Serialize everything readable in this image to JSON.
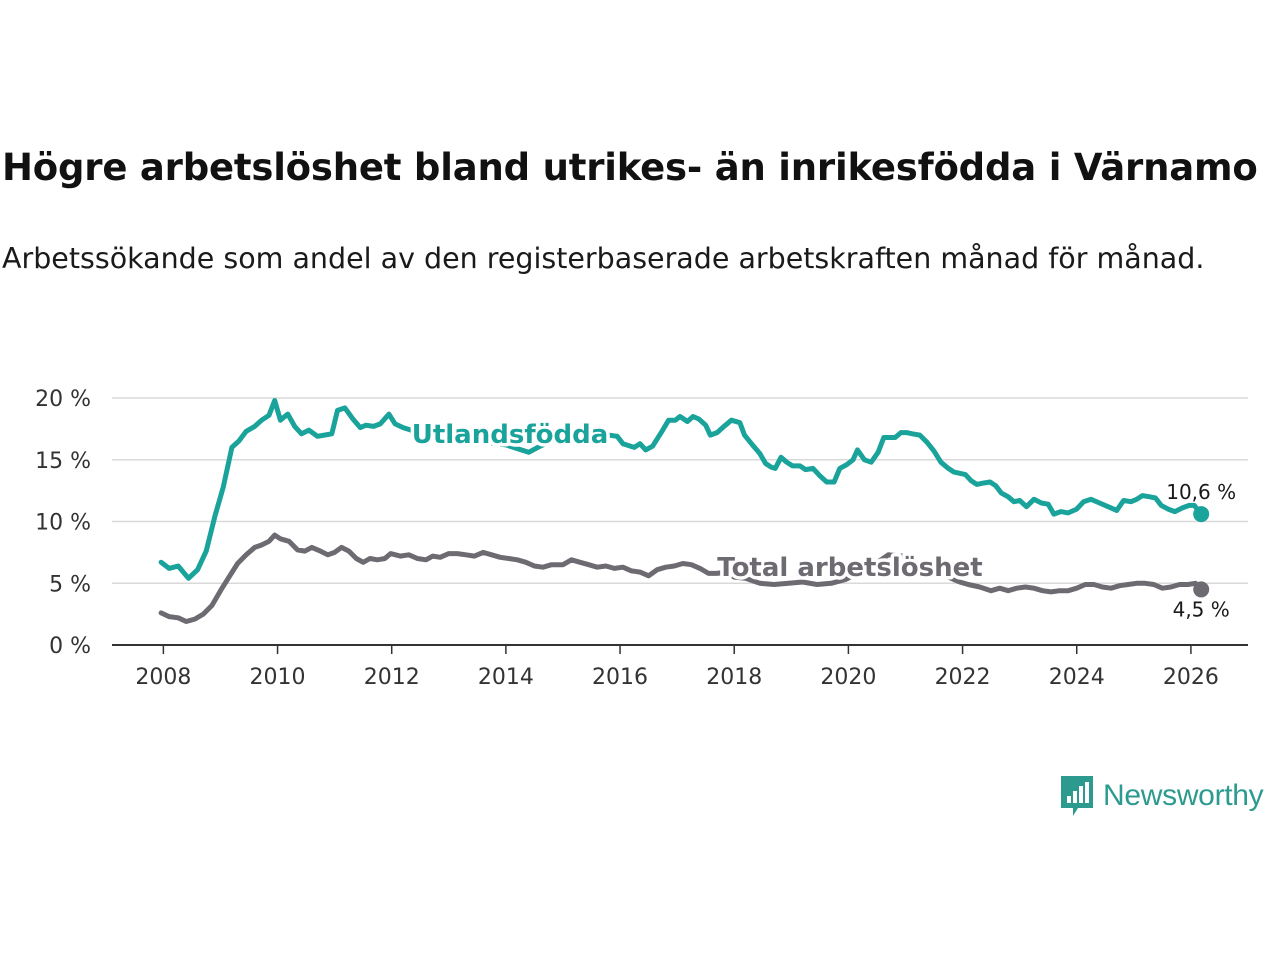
{
  "title": "Högre arbetslöshet bland utrikes- än inrikesfödda i Värnamo",
  "subtitle": "Arbetssökande som andel av den registerbaserade arbetskraften månad för månad.",
  "brand": "Newsworthy",
  "colors": {
    "utlandsfodda": "#1aa39a",
    "total": "#6e6a72",
    "grid": "#d9d9d9",
    "brand": "#2c9a8f"
  },
  "chart_data": {
    "type": "line",
    "title": "Högre arbetslöshet bland utrikes- än inrikesfödda i Värnamo",
    "xlabel": "",
    "ylabel": "",
    "xlim": [
      2007.1,
      2027.0
    ],
    "ylim": [
      0,
      20
    ],
    "yticks": [
      0,
      5,
      10,
      15,
      20
    ],
    "ytick_labels": [
      "0 %",
      "5 %",
      "10 %",
      "15 %",
      "20 %"
    ],
    "xticks": [
      2008,
      2010,
      2012,
      2014,
      2016,
      2018,
      2020,
      2022,
      2024,
      2026
    ],
    "xtick_labels": [
      "2008",
      "2010",
      "2012",
      "2014",
      "2016",
      "2018",
      "2020",
      "2022",
      "2024",
      "2026"
    ],
    "grid": true,
    "series": [
      {
        "name": "Utlandsfödda",
        "end_label": "10,6 %",
        "points": [
          [
            2007.96,
            6.7
          ],
          [
            2008.1,
            6.2
          ],
          [
            2008.26,
            6.4
          ],
          [
            2008.44,
            5.4
          ],
          [
            2008.6,
            6.1
          ],
          [
            2008.75,
            7.6
          ],
          [
            2008.9,
            10.4
          ],
          [
            2009.05,
            12.8
          ],
          [
            2009.2,
            16.0
          ],
          [
            2009.32,
            16.5
          ],
          [
            2009.45,
            17.3
          ],
          [
            2009.6,
            17.7
          ],
          [
            2009.72,
            18.2
          ],
          [
            2009.85,
            18.6
          ],
          [
            2009.95,
            19.8
          ],
          [
            2010.05,
            18.2
          ],
          [
            2010.18,
            18.7
          ],
          [
            2010.3,
            17.7
          ],
          [
            2010.42,
            17.1
          ],
          [
            2010.55,
            17.4
          ],
          [
            2010.7,
            16.9
          ],
          [
            2010.82,
            17.0
          ],
          [
            2010.95,
            17.1
          ],
          [
            2011.05,
            19.0
          ],
          [
            2011.18,
            19.2
          ],
          [
            2011.32,
            18.3
          ],
          [
            2011.45,
            17.6
          ],
          [
            2011.55,
            17.8
          ],
          [
            2011.68,
            17.7
          ],
          [
            2011.8,
            17.9
          ],
          [
            2011.95,
            18.7
          ],
          [
            2012.06,
            17.9
          ],
          [
            2012.2,
            17.6
          ],
          [
            2012.4,
            17.3
          ],
          [
            2012.8,
            17.1
          ],
          [
            2013.4,
            16.6
          ],
          [
            2014.0,
            16.2
          ],
          [
            2014.4,
            15.6
          ],
          [
            2014.6,
            16.1
          ],
          [
            2015.0,
            16.9
          ],
          [
            2015.5,
            17.2
          ],
          [
            2015.95,
            16.9
          ],
          [
            2016.05,
            16.3
          ],
          [
            2016.25,
            16.0
          ],
          [
            2016.35,
            16.3
          ],
          [
            2016.45,
            15.8
          ],
          [
            2016.57,
            16.1
          ],
          [
            2016.72,
            17.2
          ],
          [
            2016.85,
            18.2
          ],
          [
            2016.97,
            18.2
          ],
          [
            2017.05,
            18.5
          ],
          [
            2017.18,
            18.1
          ],
          [
            2017.28,
            18.5
          ],
          [
            2017.38,
            18.3
          ],
          [
            2017.5,
            17.8
          ],
          [
            2017.58,
            17.0
          ],
          [
            2017.7,
            17.2
          ],
          [
            2017.82,
            17.7
          ],
          [
            2017.95,
            18.2
          ],
          [
            2018.1,
            18.0
          ],
          [
            2018.18,
            17.0
          ],
          [
            2018.32,
            16.2
          ],
          [
            2018.45,
            15.5
          ],
          [
            2018.55,
            14.7
          ],
          [
            2018.65,
            14.4
          ],
          [
            2018.72,
            14.3
          ],
          [
            2018.82,
            15.2
          ],
          [
            2018.92,
            14.8
          ],
          [
            2019.02,
            14.5
          ],
          [
            2019.15,
            14.5
          ],
          [
            2019.25,
            14.2
          ],
          [
            2019.38,
            14.3
          ],
          [
            2019.5,
            13.7
          ],
          [
            2019.62,
            13.2
          ],
          [
            2019.75,
            13.2
          ],
          [
            2019.85,
            14.3
          ],
          [
            2019.97,
            14.6
          ],
          [
            2020.08,
            15.0
          ],
          [
            2020.16,
            15.8
          ],
          [
            2020.28,
            15.0
          ],
          [
            2020.4,
            14.8
          ],
          [
            2020.52,
            15.6
          ],
          [
            2020.62,
            16.8
          ],
          [
            2020.72,
            16.8
          ],
          [
            2020.82,
            16.8
          ],
          [
            2020.92,
            17.2
          ],
          [
            2021.02,
            17.2
          ],
          [
            2021.12,
            17.1
          ],
          [
            2021.25,
            17.0
          ],
          [
            2021.38,
            16.4
          ],
          [
            2021.5,
            15.7
          ],
          [
            2021.62,
            14.8
          ],
          [
            2021.75,
            14.3
          ],
          [
            2021.85,
            14.0
          ],
          [
            2021.95,
            13.9
          ],
          [
            2022.05,
            13.8
          ],
          [
            2022.15,
            13.3
          ],
          [
            2022.25,
            13.0
          ],
          [
            2022.35,
            13.1
          ],
          [
            2022.48,
            13.2
          ],
          [
            2022.58,
            12.9
          ],
          [
            2022.68,
            12.3
          ],
          [
            2022.8,
            12.0
          ],
          [
            2022.9,
            11.6
          ],
          [
            2023.0,
            11.7
          ],
          [
            2023.12,
            11.2
          ],
          [
            2023.25,
            11.8
          ],
          [
            2023.38,
            11.5
          ],
          [
            2023.5,
            11.4
          ],
          [
            2023.6,
            10.6
          ],
          [
            2023.72,
            10.8
          ],
          [
            2023.85,
            10.7
          ],
          [
            2024.0,
            11.0
          ],
          [
            2024.12,
            11.6
          ],
          [
            2024.25,
            11.8
          ],
          [
            2024.4,
            11.5
          ],
          [
            2024.55,
            11.2
          ],
          [
            2024.7,
            10.9
          ],
          [
            2024.82,
            11.7
          ],
          [
            2024.95,
            11.6
          ],
          [
            2025.05,
            11.8
          ],
          [
            2025.15,
            12.1
          ],
          [
            2025.28,
            12.0
          ],
          [
            2025.38,
            11.9
          ],
          [
            2025.48,
            11.3
          ],
          [
            2025.6,
            11.0
          ],
          [
            2025.72,
            10.8
          ],
          [
            2025.85,
            11.1
          ],
          [
            2025.97,
            11.3
          ],
          [
            2026.06,
            11.3
          ],
          [
            2026.18,
            10.6
          ]
        ]
      },
      {
        "name": "Total arbetslöshet",
        "end_label": "4,5 %",
        "points": [
          [
            2007.96,
            2.6
          ],
          [
            2008.1,
            2.3
          ],
          [
            2008.26,
            2.2
          ],
          [
            2008.4,
            1.9
          ],
          [
            2008.55,
            2.1
          ],
          [
            2008.7,
            2.5
          ],
          [
            2008.85,
            3.2
          ],
          [
            2009.0,
            4.4
          ],
          [
            2009.15,
            5.5
          ],
          [
            2009.3,
            6.6
          ],
          [
            2009.45,
            7.3
          ],
          [
            2009.6,
            7.9
          ],
          [
            2009.72,
            8.1
          ],
          [
            2009.85,
            8.4
          ],
          [
            2009.95,
            8.9
          ],
          [
            2010.05,
            8.6
          ],
          [
            2010.2,
            8.4
          ],
          [
            2010.35,
            7.7
          ],
          [
            2010.48,
            7.6
          ],
          [
            2010.6,
            7.9
          ],
          [
            2010.75,
            7.6
          ],
          [
            2010.88,
            7.3
          ],
          [
            2011.0,
            7.5
          ],
          [
            2011.12,
            7.9
          ],
          [
            2011.25,
            7.6
          ],
          [
            2011.38,
            7.0
          ],
          [
            2011.5,
            6.7
          ],
          [
            2011.62,
            7.0
          ],
          [
            2011.75,
            6.9
          ],
          [
            2011.88,
            7.0
          ],
          [
            2011.98,
            7.4
          ],
          [
            2012.15,
            7.2
          ],
          [
            2012.3,
            7.3
          ],
          [
            2012.45,
            7.0
          ],
          [
            2012.6,
            6.9
          ],
          [
            2012.72,
            7.2
          ],
          [
            2012.85,
            7.1
          ],
          [
            2013.0,
            7.4
          ],
          [
            2013.15,
            7.4
          ],
          [
            2013.3,
            7.3
          ],
          [
            2013.45,
            7.2
          ],
          [
            2013.6,
            7.5
          ],
          [
            2013.75,
            7.3
          ],
          [
            2013.9,
            7.1
          ],
          [
            2014.05,
            7.0
          ],
          [
            2014.2,
            6.9
          ],
          [
            2014.35,
            6.7
          ],
          [
            2014.5,
            6.4
          ],
          [
            2014.65,
            6.3
          ],
          [
            2014.8,
            6.5
          ],
          [
            2015.0,
            6.5
          ],
          [
            2015.15,
            6.9
          ],
          [
            2015.3,
            6.7
          ],
          [
            2015.45,
            6.5
          ],
          [
            2015.6,
            6.3
          ],
          [
            2015.75,
            6.4
          ],
          [
            2015.9,
            6.2
          ],
          [
            2016.05,
            6.3
          ],
          [
            2016.2,
            6.0
          ],
          [
            2016.35,
            5.9
          ],
          [
            2016.5,
            5.6
          ],
          [
            2016.65,
            6.1
          ],
          [
            2016.8,
            6.3
          ],
          [
            2016.95,
            6.4
          ],
          [
            2017.1,
            6.6
          ],
          [
            2017.25,
            6.5
          ],
          [
            2017.4,
            6.2
          ],
          [
            2017.55,
            5.8
          ],
          [
            2017.7,
            5.8
          ],
          [
            2017.85,
            5.9
          ],
          [
            2018.0,
            5.5
          ],
          [
            2018.2,
            5.4
          ],
          [
            2018.45,
            5.0
          ],
          [
            2018.7,
            4.9
          ],
          [
            2018.95,
            5.0
          ],
          [
            2019.2,
            5.1
          ],
          [
            2019.45,
            4.9
          ],
          [
            2019.7,
            5.0
          ],
          [
            2019.95,
            5.3
          ],
          [
            2020.2,
            5.9
          ],
          [
            2020.45,
            6.5
          ],
          [
            2020.7,
            7.3
          ],
          [
            2020.95,
            7.2
          ],
          [
            2021.2,
            6.6
          ],
          [
            2021.45,
            6.1
          ],
          [
            2021.7,
            5.6
          ],
          [
            2021.95,
            5.1
          ],
          [
            2022.1,
            4.9
          ],
          [
            2022.3,
            4.7
          ],
          [
            2022.5,
            4.4
          ],
          [
            2022.65,
            4.6
          ],
          [
            2022.8,
            4.4
          ],
          [
            2022.95,
            4.6
          ],
          [
            2023.1,
            4.7
          ],
          [
            2023.25,
            4.6
          ],
          [
            2023.4,
            4.4
          ],
          [
            2023.55,
            4.3
          ],
          [
            2023.7,
            4.4
          ],
          [
            2023.85,
            4.4
          ],
          [
            2024.0,
            4.6
          ],
          [
            2024.15,
            4.9
          ],
          [
            2024.3,
            4.9
          ],
          [
            2024.45,
            4.7
          ],
          [
            2024.6,
            4.6
          ],
          [
            2024.75,
            4.8
          ],
          [
            2024.9,
            4.9
          ],
          [
            2025.05,
            5.0
          ],
          [
            2025.2,
            5.0
          ],
          [
            2025.35,
            4.9
          ],
          [
            2025.5,
            4.6
          ],
          [
            2025.65,
            4.7
          ],
          [
            2025.8,
            4.9
          ],
          [
            2025.95,
            4.9
          ],
          [
            2026.08,
            5.0
          ],
          [
            2026.18,
            4.5
          ]
        ]
      }
    ]
  }
}
